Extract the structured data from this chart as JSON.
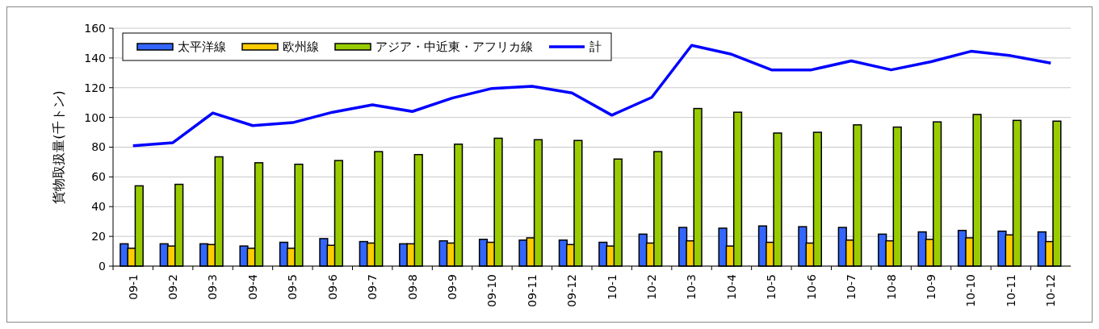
{
  "chart_data": {
    "type": "bar",
    "ylabel": "貨物取扱量(千トン)",
    "categories": [
      "09-1",
      "09-2",
      "09-3",
      "09-4",
      "09-5",
      "09-6",
      "09-7",
      "09-8",
      "09-9",
      "09-10",
      "09-11",
      "09-12",
      "10-1",
      "10-2",
      "10-3",
      "10-4",
      "10-5",
      "10-6",
      "10-7",
      "10-8",
      "10-9",
      "10-10",
      "10-11",
      "10-12"
    ],
    "series": [
      {
        "name": "太平洋線",
        "color": "#3366ff",
        "values": [
          15,
          15,
          15,
          13.5,
          16,
          18.5,
          16.5,
          15,
          17,
          18,
          17.5,
          17.5,
          16,
          21.5,
          26,
          25.5,
          27,
          26.5,
          26,
          21.5,
          23,
          24,
          23.5,
          23
        ]
      },
      {
        "name": "欧州線",
        "color": "#ffcc00",
        "values": [
          12,
          13.5,
          14.5,
          12,
          12,
          14,
          15.5,
          15,
          15.5,
          16,
          19,
          14.5,
          13.5,
          15.5,
          17,
          13.5,
          16,
          15.5,
          17.5,
          17,
          18,
          19,
          21,
          16.5
        ]
      },
      {
        "name": "アジア・中近東・アフリカ線",
        "color": "#99cc00",
        "values": [
          54,
          55,
          73.5,
          69.5,
          68.5,
          71,
          77,
          75,
          82,
          86,
          85,
          84.5,
          72,
          77,
          106,
          103.5,
          89.5,
          90,
          95,
          93.5,
          97,
          102,
          98,
          97.5
        ]
      },
      {
        "name": "計",
        "type": "line",
        "color": "#0000ff",
        "values": [
          81,
          83,
          103,
          94.5,
          96.5,
          103.5,
          108.5,
          104,
          113,
          119.5,
          121,
          116.5,
          101.5,
          113.5,
          148.5,
          142.5,
          132,
          132,
          138,
          132,
          137.5,
          144.5,
          141.5,
          136.5
        ]
      }
    ],
    "ylim": [
      0,
      160
    ],
    "yticks": [
      0,
      20,
      40,
      60,
      80,
      100,
      120,
      140,
      160
    ],
    "grid": "y",
    "legend": "top left",
    "marker": "none"
  }
}
